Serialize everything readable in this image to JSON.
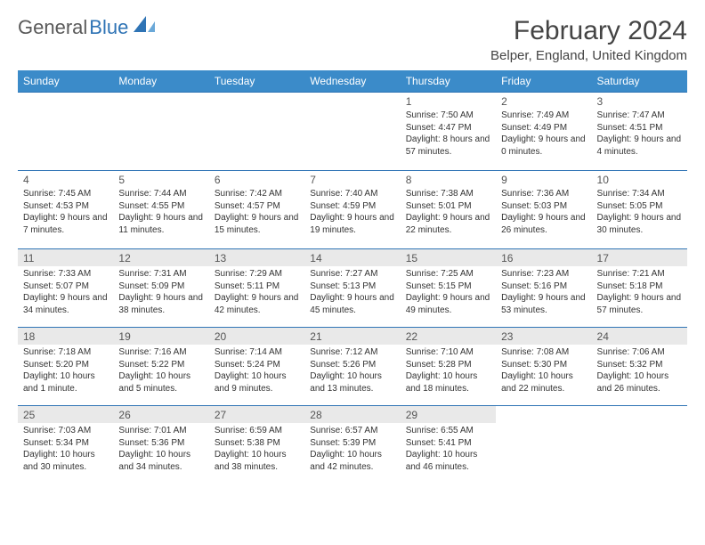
{
  "logo": {
    "text1": "General",
    "text2": "Blue"
  },
  "title": "February 2024",
  "location": "Belper, England, United Kingdom",
  "header_bg": "#3b8bc9",
  "border_color": "#2f74b5",
  "shade_bg": "#e9e9e9",
  "daynames": [
    "Sunday",
    "Monday",
    "Tuesday",
    "Wednesday",
    "Thursday",
    "Friday",
    "Saturday"
  ],
  "weeks": [
    [
      null,
      null,
      null,
      null,
      {
        "n": "1",
        "sr": "7:50 AM",
        "ss": "4:47 PM",
        "dl": "8 hours and 57 minutes."
      },
      {
        "n": "2",
        "sr": "7:49 AM",
        "ss": "4:49 PM",
        "dl": "9 hours and 0 minutes."
      },
      {
        "n": "3",
        "sr": "7:47 AM",
        "ss": "4:51 PM",
        "dl": "9 hours and 4 minutes."
      }
    ],
    [
      {
        "n": "4",
        "sr": "7:45 AM",
        "ss": "4:53 PM",
        "dl": "9 hours and 7 minutes."
      },
      {
        "n": "5",
        "sr": "7:44 AM",
        "ss": "4:55 PM",
        "dl": "9 hours and 11 minutes."
      },
      {
        "n": "6",
        "sr": "7:42 AM",
        "ss": "4:57 PM",
        "dl": "9 hours and 15 minutes."
      },
      {
        "n": "7",
        "sr": "7:40 AM",
        "ss": "4:59 PM",
        "dl": "9 hours and 19 minutes."
      },
      {
        "n": "8",
        "sr": "7:38 AM",
        "ss": "5:01 PM",
        "dl": "9 hours and 22 minutes."
      },
      {
        "n": "9",
        "sr": "7:36 AM",
        "ss": "5:03 PM",
        "dl": "9 hours and 26 minutes."
      },
      {
        "n": "10",
        "sr": "7:34 AM",
        "ss": "5:05 PM",
        "dl": "9 hours and 30 minutes."
      }
    ],
    [
      {
        "n": "11",
        "sr": "7:33 AM",
        "ss": "5:07 PM",
        "dl": "9 hours and 34 minutes."
      },
      {
        "n": "12",
        "sr": "7:31 AM",
        "ss": "5:09 PM",
        "dl": "9 hours and 38 minutes."
      },
      {
        "n": "13",
        "sr": "7:29 AM",
        "ss": "5:11 PM",
        "dl": "9 hours and 42 minutes."
      },
      {
        "n": "14",
        "sr": "7:27 AM",
        "ss": "5:13 PM",
        "dl": "9 hours and 45 minutes."
      },
      {
        "n": "15",
        "sr": "7:25 AM",
        "ss": "5:15 PM",
        "dl": "9 hours and 49 minutes."
      },
      {
        "n": "16",
        "sr": "7:23 AM",
        "ss": "5:16 PM",
        "dl": "9 hours and 53 minutes."
      },
      {
        "n": "17",
        "sr": "7:21 AM",
        "ss": "5:18 PM",
        "dl": "9 hours and 57 minutes."
      }
    ],
    [
      {
        "n": "18",
        "sr": "7:18 AM",
        "ss": "5:20 PM",
        "dl": "10 hours and 1 minute."
      },
      {
        "n": "19",
        "sr": "7:16 AM",
        "ss": "5:22 PM",
        "dl": "10 hours and 5 minutes."
      },
      {
        "n": "20",
        "sr": "7:14 AM",
        "ss": "5:24 PM",
        "dl": "10 hours and 9 minutes."
      },
      {
        "n": "21",
        "sr": "7:12 AM",
        "ss": "5:26 PM",
        "dl": "10 hours and 13 minutes."
      },
      {
        "n": "22",
        "sr": "7:10 AM",
        "ss": "5:28 PM",
        "dl": "10 hours and 18 minutes."
      },
      {
        "n": "23",
        "sr": "7:08 AM",
        "ss": "5:30 PM",
        "dl": "10 hours and 22 minutes."
      },
      {
        "n": "24",
        "sr": "7:06 AM",
        "ss": "5:32 PM",
        "dl": "10 hours and 26 minutes."
      }
    ],
    [
      {
        "n": "25",
        "sr": "7:03 AM",
        "ss": "5:34 PM",
        "dl": "10 hours and 30 minutes."
      },
      {
        "n": "26",
        "sr": "7:01 AM",
        "ss": "5:36 PM",
        "dl": "10 hours and 34 minutes."
      },
      {
        "n": "27",
        "sr": "6:59 AM",
        "ss": "5:38 PM",
        "dl": "10 hours and 38 minutes."
      },
      {
        "n": "28",
        "sr": "6:57 AM",
        "ss": "5:39 PM",
        "dl": "10 hours and 42 minutes."
      },
      {
        "n": "29",
        "sr": "6:55 AM",
        "ss": "5:41 PM",
        "dl": "10 hours and 46 minutes."
      },
      null,
      null
    ]
  ],
  "labels": {
    "sunrise": "Sunrise:",
    "sunset": "Sunset:",
    "daylight": "Daylight:"
  },
  "shaded_rows": [
    2,
    3,
    4
  ]
}
